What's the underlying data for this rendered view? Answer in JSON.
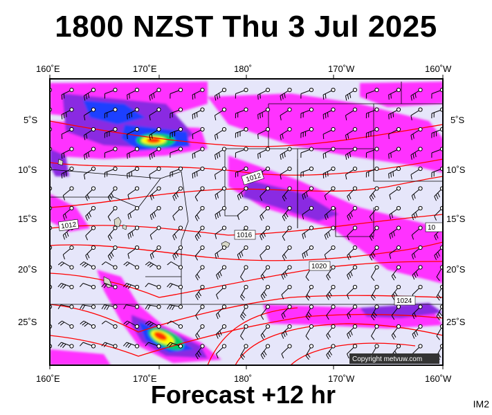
{
  "title": "1800 NZST Thu 3 Jul 2025",
  "subtitle": "Forecast +12 hr",
  "corner_code": "IM2",
  "copyright": "Copyright metvuw.com",
  "map": {
    "lon_labels_top": [
      "160˚E",
      "170˚E",
      "180˚",
      "170˚W",
      "160˚W"
    ],
    "lon_labels_bottom": [
      "160˚E",
      "170˚E",
      "180˚",
      "170˚W",
      "160˚W"
    ],
    "lat_labels": [
      "5˚S",
      "10˚S",
      "15˚S",
      "20˚S",
      "25˚S"
    ],
    "isobar_labels": [
      "1012",
      "1012",
      "1016",
      "1020",
      "1024",
      "10"
    ],
    "colors": {
      "ocean": "#e6e6fa",
      "rain_light": "#ff33ff",
      "rain_mid": "#8a2be2",
      "rain_heavy": "#1e40ff",
      "rain_core": "#ff3300",
      "isobar": "#ff0000",
      "coast": "#000000"
    }
  }
}
